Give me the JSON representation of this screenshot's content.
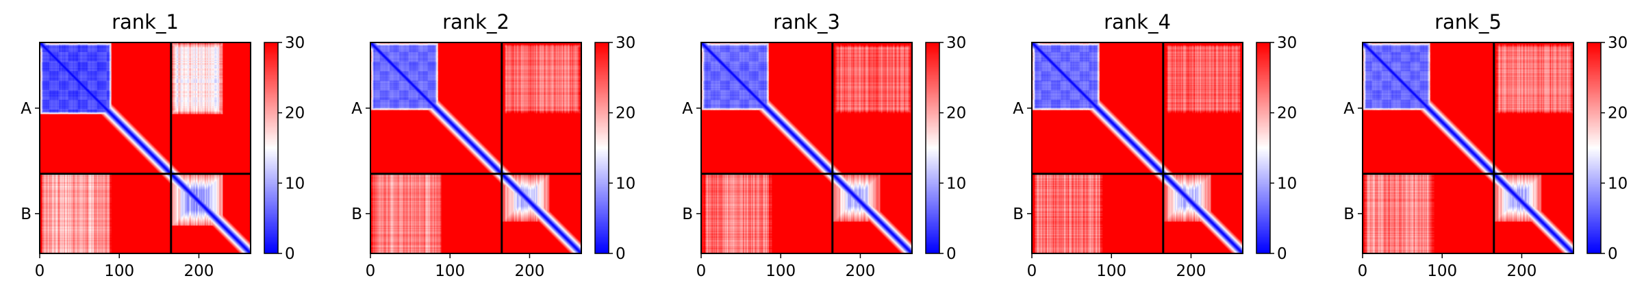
{
  "chart_data": {
    "type": "heatmap",
    "colormap": [
      "#0000ff",
      "#ffffff",
      "#ff0000"
    ],
    "chain_boundary": 165,
    "n_residues": 265,
    "x_ticks": [
      0,
      100,
      200
    ],
    "y_tick_labels": [
      "A",
      "B"
    ],
    "y_tick_positions": [
      82.5,
      215
    ],
    "colorbar_ticks": [
      0,
      10,
      20,
      30
    ],
    "clim": [
      0,
      30
    ],
    "panels": [
      {
        "title": "rank_1",
        "features": {
          "chainA_domain": {
            "range": [
              0,
              90
            ],
            "min_value": 2,
            "spread": 3
          },
          "diagonal_width": 6,
          "chainB_domain": {
            "range": [
              165,
              230
            ],
            "min_value": 6
          },
          "interchain_block": {
            "rows": [
              165,
              265
            ],
            "cols": [
              0,
              90
            ],
            "mean_value": 20
          },
          "interchain_block_upper": {
            "rows": [
              0,
              90
            ],
            "cols": [
              165,
              230
            ],
            "mean_value": 16
          }
        }
      },
      {
        "title": "rank_2",
        "features": {
          "chainA_domain": {
            "range": [
              0,
              85
            ],
            "min_value": 4,
            "spread": 3
          },
          "diagonal_width": 6,
          "chainB_domain": {
            "range": [
              165,
              225
            ],
            "min_value": 8
          },
          "interchain_block": {
            "rows": [
              165,
              265
            ],
            "cols": [
              0,
              90
            ],
            "mean_value": 22
          },
          "interchain_block_upper": {
            "rows": [
              0,
              90
            ],
            "cols": [
              165,
              265
            ],
            "mean_value": 23
          }
        }
      },
      {
        "title": "rank_3",
        "features": {
          "chainA_domain": {
            "range": [
              0,
              85
            ],
            "min_value": 4,
            "spread": 3
          },
          "diagonal_width": 6,
          "chainB_domain": {
            "range": [
              165,
              225
            ],
            "min_value": 8
          },
          "interchain_block": {
            "rows": [
              165,
              265
            ],
            "cols": [
              0,
              90
            ],
            "mean_value": 23
          },
          "interchain_block_upper": {
            "rows": [
              0,
              90
            ],
            "cols": [
              165,
              265
            ],
            "mean_value": 24
          }
        }
      },
      {
        "title": "rank_4",
        "features": {
          "chainA_domain": {
            "range": [
              0,
              85
            ],
            "min_value": 4,
            "spread": 3
          },
          "diagonal_width": 6,
          "chainB_domain": {
            "range": [
              165,
              225
            ],
            "min_value": 8
          },
          "interchain_block": {
            "rows": [
              165,
              265
            ],
            "cols": [
              0,
              90
            ],
            "mean_value": 23
          },
          "interchain_block_upper": {
            "rows": [
              0,
              90
            ],
            "cols": [
              165,
              265
            ],
            "mean_value": 24
          }
        }
      },
      {
        "title": "rank_5",
        "features": {
          "chainA_domain": {
            "range": [
              0,
              85
            ],
            "min_value": 4,
            "spread": 3
          },
          "diagonal_width": 6,
          "chainB_domain": {
            "range": [
              165,
              225
            ],
            "min_value": 8
          },
          "interchain_block": {
            "rows": [
              165,
              265
            ],
            "cols": [
              0,
              90
            ],
            "mean_value": 22
          },
          "interchain_block_upper": {
            "rows": [
              0,
              90
            ],
            "cols": [
              165,
              265
            ],
            "mean_value": 23
          }
        }
      }
    ]
  }
}
